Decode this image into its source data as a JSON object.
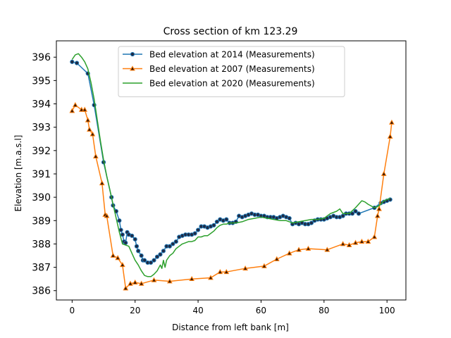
{
  "chart_data": {
    "type": "line",
    "title": "Cross section of km 123.29",
    "xlabel": "Distance from left bank [m]",
    "ylabel": "Elevation [m.a.s.l]",
    "xlim": [
      -5,
      106
    ],
    "ylim": [
      385.6,
      396.7
    ],
    "xticks": [
      0,
      20,
      40,
      60,
      80,
      100
    ],
    "yticks": [
      386,
      387,
      388,
      389,
      390,
      391,
      392,
      393,
      394,
      395,
      396
    ],
    "legend": "upper-center",
    "grid": false,
    "series": [
      {
        "name": "Bed elevation at 2014 (Measurements)",
        "color": "#1f77b4",
        "marker": "circle",
        "marker_face": "#1f2a44",
        "x": [
          0,
          1.5,
          5,
          7,
          10,
          12.5,
          13,
          14,
          15,
          15.5,
          16,
          16.5,
          17,
          17.5,
          18,
          19,
          20,
          20.5,
          21,
          22,
          22.5,
          23,
          24,
          25,
          26,
          27,
          28,
          29,
          30,
          31,
          32,
          33,
          34,
          35,
          36,
          37,
          38,
          39,
          40,
          41,
          42,
          43,
          44,
          45,
          46,
          47,
          48,
          49,
          50,
          51,
          52,
          53,
          54,
          55,
          56,
          57,
          58,
          59,
          60,
          61,
          62,
          63,
          64,
          65,
          66,
          67,
          68,
          69,
          70,
          71,
          72,
          73,
          74,
          75,
          76,
          77,
          78,
          79,
          80,
          81,
          82,
          83,
          84,
          85,
          86,
          87,
          88,
          89,
          90,
          91,
          96,
          98,
          99,
          100,
          101
        ],
        "y": [
          395.8,
          395.75,
          395.3,
          393.95,
          391.5,
          390.0,
          389.65,
          389.4,
          389.0,
          388.6,
          388.4,
          388.1,
          388.05,
          388.5,
          388.4,
          388.35,
          388.2,
          387.9,
          387.7,
          387.5,
          387.3,
          387.3,
          387.2,
          387.2,
          387.3,
          387.45,
          387.55,
          387.7,
          387.9,
          387.9,
          388.0,
          388.1,
          388.3,
          388.35,
          388.4,
          388.4,
          388.4,
          388.45,
          388.6,
          388.75,
          388.75,
          388.7,
          388.75,
          388.8,
          388.95,
          389.05,
          389.0,
          389.05,
          388.9,
          388.9,
          388.95,
          389.2,
          389.15,
          389.2,
          389.25,
          389.3,
          389.25,
          389.25,
          389.2,
          389.2,
          389.15,
          389.15,
          389.15,
          389.1,
          389.15,
          389.2,
          389.15,
          389.1,
          388.85,
          388.9,
          388.85,
          388.9,
          388.85,
          388.85,
          388.9,
          389.0,
          389.05,
          389.05,
          389.05,
          389.1,
          389.15,
          389.2,
          389.15,
          389.15,
          389.2,
          389.3,
          389.3,
          389.3,
          389.4,
          389.3,
          389.55,
          389.75,
          389.8,
          389.85,
          389.9
        ]
      },
      {
        "name": "Bed elevation at 2007 (Measurements)",
        "color": "#ff7f0e",
        "marker": "triangle",
        "marker_face": "#3a1a00",
        "x": [
          0,
          1,
          3,
          4,
          5,
          5.5,
          6.5,
          7.5,
          9.5,
          10.5,
          11,
          13,
          14.5,
          16,
          17,
          18.5,
          20,
          22,
          26,
          31,
          38,
          44,
          47,
          49,
          55,
          61,
          65,
          69,
          72,
          75,
          81,
          86,
          88,
          90,
          92,
          94,
          96,
          97,
          97.5,
          99,
          101,
          101.5
        ],
        "y": [
          393.7,
          393.95,
          393.75,
          393.75,
          393.3,
          392.9,
          392.7,
          391.75,
          390.6,
          389.25,
          389.2,
          387.5,
          387.4,
          387.1,
          386.1,
          386.3,
          386.35,
          386.3,
          386.45,
          386.4,
          386.5,
          386.55,
          386.8,
          386.8,
          386.95,
          387.05,
          387.35,
          387.6,
          387.75,
          387.8,
          387.75,
          388.0,
          387.95,
          388.05,
          388.1,
          388.1,
          388.3,
          389.2,
          389.5,
          391.0,
          392.6,
          393.2
        ]
      },
      {
        "name": "Bed elevation at 2020 (Measurements)",
        "color": "#2ca02c",
        "marker": "none",
        "x": [
          0,
          1,
          2,
          3,
          4,
          5,
          6,
          7,
          8,
          9,
          10,
          11,
          12,
          13,
          14,
          15,
          16,
          17,
          18,
          19,
          20,
          21,
          22,
          23,
          24,
          25,
          26,
          27,
          28,
          28.5,
          29,
          29.5,
          30,
          31,
          32,
          33,
          34,
          35,
          36,
          37,
          38,
          39,
          40,
          41,
          42,
          43,
          44,
          45,
          46,
          47,
          48,
          49,
          50,
          52,
          54,
          56,
          58,
          60,
          62,
          64,
          66,
          68,
          70,
          72,
          74,
          76,
          78,
          80,
          82,
          84,
          85,
          86,
          88,
          90,
          92,
          93,
          94,
          96,
          97,
          98,
          99,
          100,
          101
        ],
        "y": [
          395.9,
          396.1,
          396.15,
          396.0,
          395.8,
          395.5,
          394.9,
          394.2,
          393.3,
          392.4,
          391.6,
          390.9,
          390.3,
          389.7,
          389.1,
          388.5,
          388.0,
          387.95,
          387.9,
          387.6,
          387.3,
          387.1,
          386.85,
          386.65,
          386.6,
          386.6,
          386.7,
          386.85,
          387.1,
          386.95,
          387.3,
          387.0,
          387.3,
          387.5,
          387.6,
          387.8,
          387.9,
          388.0,
          388.05,
          388.1,
          388.1,
          388.15,
          388.3,
          388.3,
          388.35,
          388.35,
          388.45,
          388.55,
          388.7,
          388.8,
          388.85,
          388.85,
          388.9,
          388.9,
          388.95,
          389.05,
          389.1,
          389.15,
          389.1,
          389.05,
          389.0,
          389.0,
          388.9,
          388.95,
          389.0,
          389.05,
          389.05,
          389.1,
          389.3,
          389.4,
          389.5,
          389.3,
          389.3,
          389.55,
          389.85,
          389.8,
          389.7,
          389.55,
          389.6,
          389.7,
          389.85,
          389.9,
          389.95
        ]
      }
    ]
  }
}
